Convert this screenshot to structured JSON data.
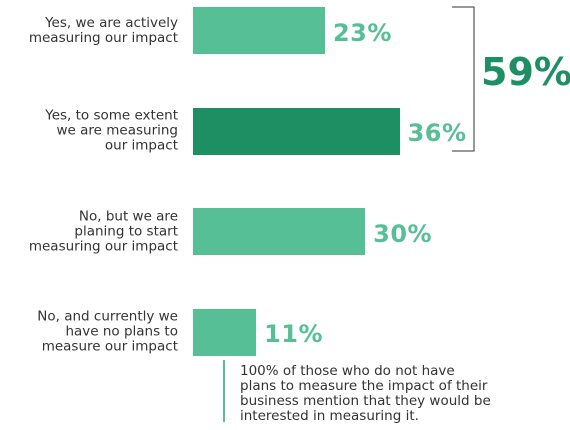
{
  "chart_data": {
    "type": "bar",
    "orientation": "horizontal",
    "categories": [
      "Yes, we are actively\nmeasuring our impact",
      "Yes, to some extent\nwe are measuring\nour impact",
      "No, but we are\nplaning to start\nmeasuring our impact",
      "No, and currently we\nhave no plans to\nmeasure our impact"
    ],
    "values": [
      23,
      36,
      30,
      11
    ],
    "value_labels": [
      "23%",
      "36%",
      "30%",
      "11%"
    ],
    "colors": [
      "#56bf96",
      "#1e8f63",
      "#56bf96",
      "#56bf96"
    ],
    "label_color": "#56bf96",
    "xlim": [
      0,
      65
    ],
    "bracket_label": "59%",
    "note": "100% of those who do not have\nplans to measure the impact of their\nbusiness mention that they would be\ninterested in measuring it."
  }
}
